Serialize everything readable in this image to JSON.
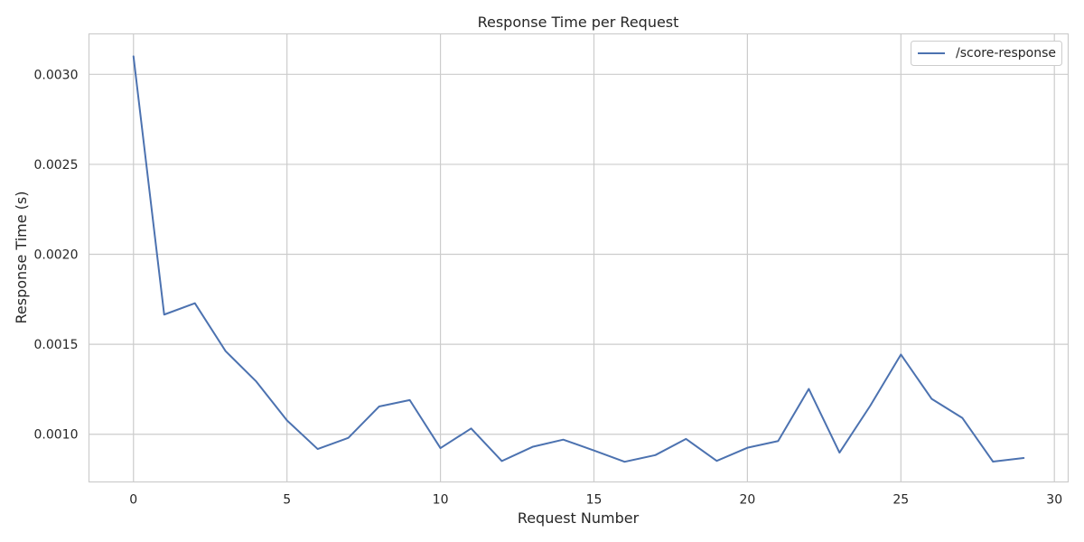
{
  "chart_data": {
    "type": "line",
    "title": "Response Time per Request",
    "xlabel": "Request Number",
    "ylabel": "Response Time (s)",
    "xlim": [
      -1.45,
      30.45
    ],
    "ylim": [
      0.000735,
      0.003225
    ],
    "xticks": [
      0,
      5,
      10,
      15,
      20,
      25,
      30
    ],
    "xtick_labels": [
      "0",
      "5",
      "10",
      "15",
      "20",
      "25",
      "30"
    ],
    "yticks": [
      0.001,
      0.0015,
      0.002,
      0.0025,
      0.003
    ],
    "ytick_labels": [
      "0.0010",
      "0.0015",
      "0.0020",
      "0.0025",
      "0.0030"
    ],
    "grid": true,
    "legend_position": "top-right",
    "series": [
      {
        "name": "/score-response",
        "color": "#4c72b0",
        "x": [
          0,
          1,
          2,
          3,
          4,
          5,
          6,
          7,
          8,
          9,
          10,
          11,
          12,
          13,
          14,
          15,
          16,
          17,
          18,
          19,
          20,
          21,
          22,
          23,
          24,
          25,
          26,
          27,
          28,
          29
        ],
        "y": [
          0.0031,
          0.001665,
          0.001728,
          0.001462,
          0.001293,
          0.001077,
          0.000918,
          0.00098,
          0.001154,
          0.00119,
          0.000923,
          0.001032,
          0.000851,
          0.00093,
          0.00097,
          0.00091,
          0.000847,
          0.000884,
          0.000974,
          0.000852,
          0.000925,
          0.000962,
          0.001252,
          0.000898,
          0.001158,
          0.001443,
          0.001197,
          0.001091,
          0.000848,
          0.000868
        ]
      }
    ]
  }
}
